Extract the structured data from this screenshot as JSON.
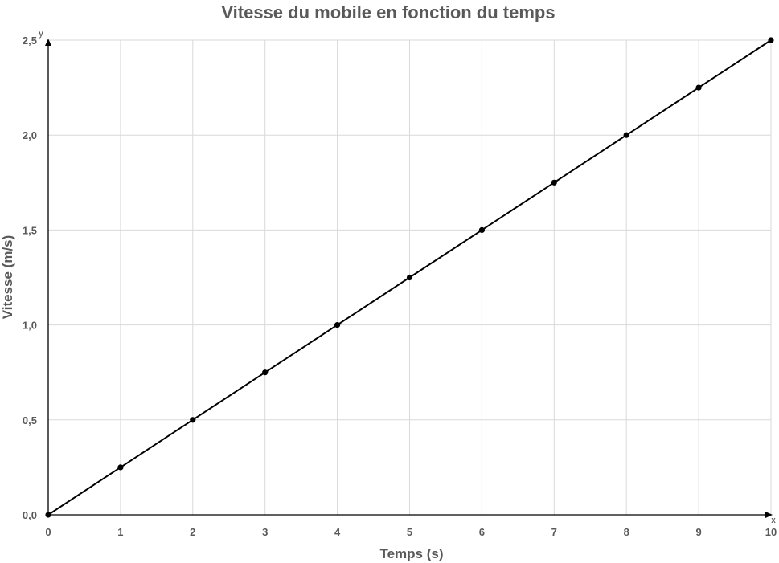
{
  "chart_data": {
    "type": "line",
    "title": "Vitesse du mobile en fonction du temps",
    "xlabel": "Temps (s)",
    "ylabel": "Vitesse (m/s)",
    "x_axis_letter": "x",
    "y_axis_letter": "y",
    "xlim": [
      0,
      10
    ],
    "ylim": [
      0,
      2.5
    ],
    "x_ticks": [
      0,
      1,
      2,
      3,
      4,
      5,
      6,
      7,
      8,
      9,
      10
    ],
    "x_tick_labels": [
      "0",
      "1",
      "2",
      "3",
      "4",
      "5",
      "6",
      "7",
      "8",
      "9",
      "10"
    ],
    "y_ticks": [
      0,
      0.5,
      1.0,
      1.5,
      2.0,
      2.5
    ],
    "y_tick_labels": [
      "0,0",
      "0,5",
      "1,0",
      "1,5",
      "2,0",
      "2,5"
    ],
    "grid": true,
    "legend": "none",
    "series": [
      {
        "x": [
          0,
          1,
          2,
          3,
          4,
          5,
          6,
          7,
          8,
          9,
          10
        ],
        "y": [
          0,
          0.25,
          0.5,
          0.75,
          1.0,
          1.25,
          1.5,
          1.75,
          2.0,
          2.25,
          2.5
        ],
        "color": "#000000",
        "markers": true
      }
    ]
  }
}
